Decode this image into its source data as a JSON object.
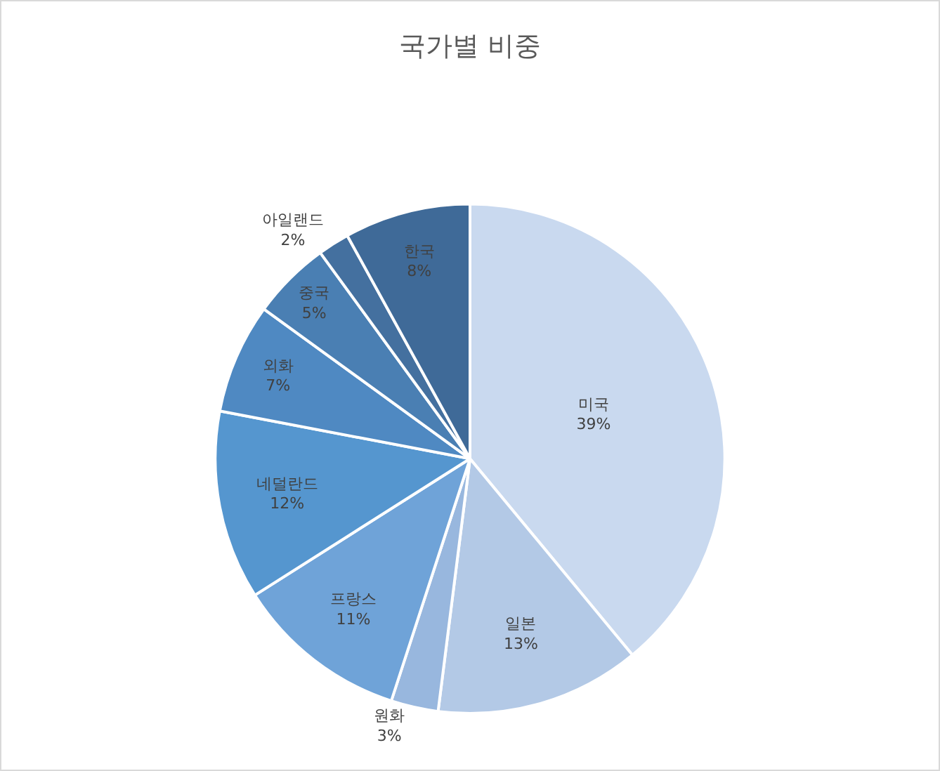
{
  "chart_data": {
    "type": "pie",
    "title": "국가별 비중",
    "categories": [
      "미국",
      "일본",
      "원화",
      "프랑스",
      "네덜란드",
      "외화",
      "중국",
      "아일랜드",
      "한국"
    ],
    "values": [
      39,
      13,
      3,
      11,
      12,
      7,
      5,
      2,
      8
    ],
    "value_labels": [
      "39%",
      "13%",
      "3%",
      "11%",
      "12%",
      "7%",
      "5%",
      "2%",
      "8%"
    ],
    "colors": [
      "#c9d9ef",
      "#b3c9e6",
      "#98b7de",
      "#6fa3d8",
      "#5596cf",
      "#4f89c2",
      "#4a7fb3",
      "#44709f",
      "#3f6a98"
    ],
    "legend": false
  }
}
